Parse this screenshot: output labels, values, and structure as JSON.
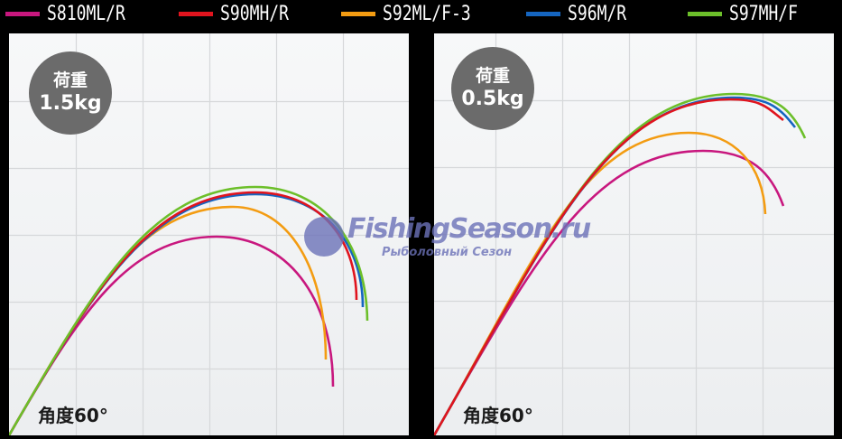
{
  "legend": [
    {
      "id": "s810mlr",
      "label": "S810ML/R",
      "color": "#c8177e"
    },
    {
      "id": "s90mhr",
      "label": "S90MH/R",
      "color": "#e0141e"
    },
    {
      "id": "s92mlf3",
      "label": "S92ML/F-3",
      "color": "#f39c12"
    },
    {
      "id": "s96mr",
      "label": "S96M/R",
      "color": "#1565c0"
    },
    {
      "id": "s97mhf",
      "label": "S97MH/F",
      "color": "#6cbf2a"
    }
  ],
  "panels": [
    {
      "load_label": "荷重",
      "load_value": "1.5kg",
      "angle_label": "角度60°"
    },
    {
      "load_label": "荷重",
      "load_value": "0.5kg",
      "angle_label": "角度60°"
    }
  ],
  "grid": {
    "columns": 6,
    "rows": 6,
    "line_color": "#d6d8da"
  },
  "watermark": {
    "title": "FishingSeason.ru",
    "subtitle": "Рыболовный Сезон",
    "color": "#6c72b8"
  }
}
